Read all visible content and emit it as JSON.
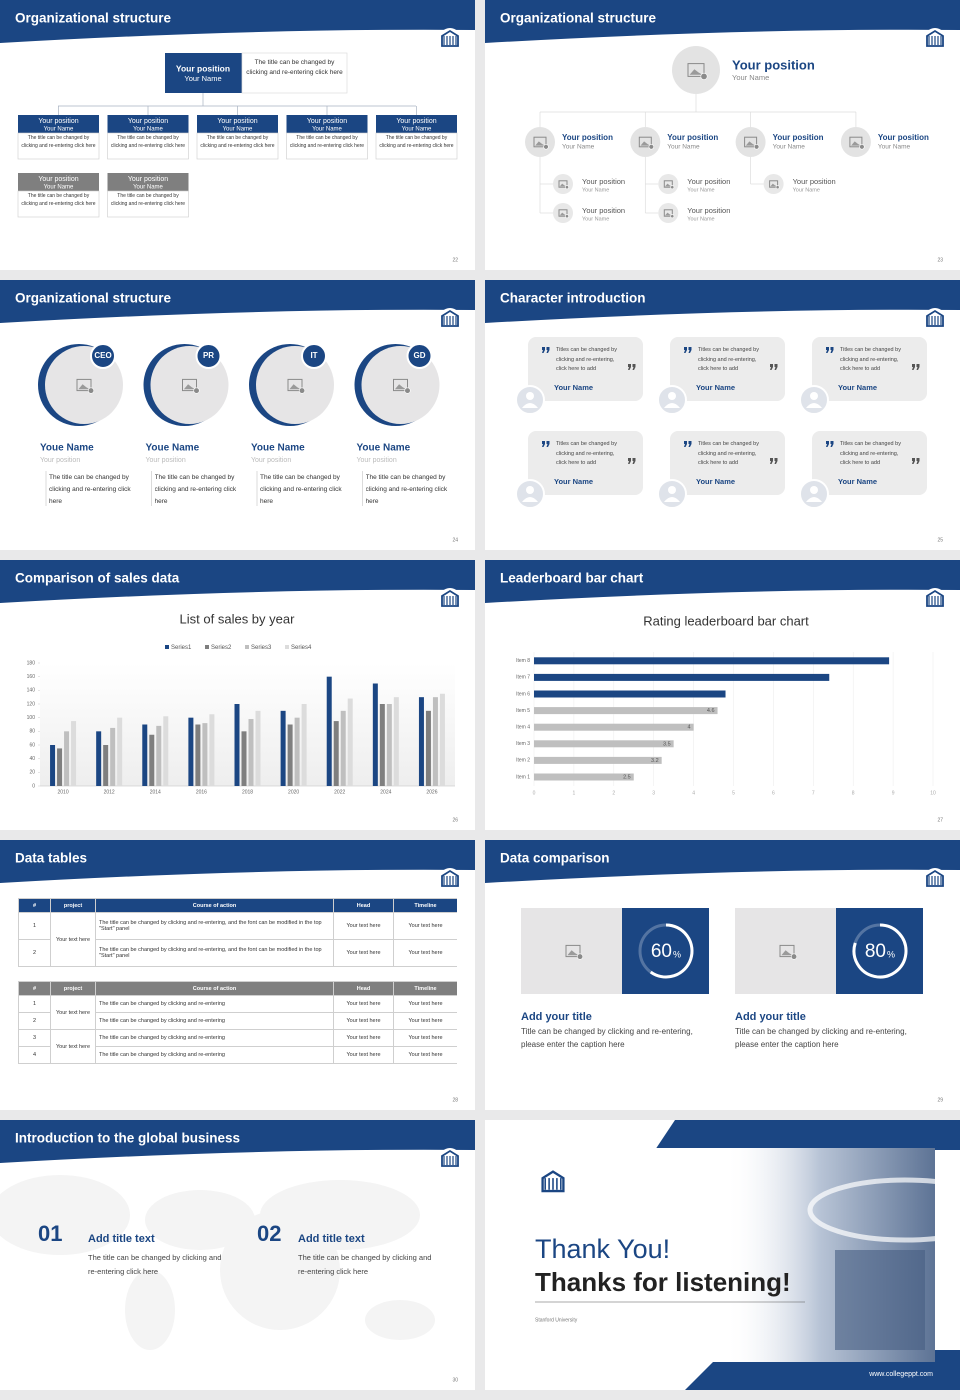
{
  "slides": [
    {
      "title": "Organizational structure",
      "page": "22",
      "top": {
        "position": "Your position",
        "name": "Your Name",
        "note": "The title can be changed by clicking and re-entering click here"
      },
      "members": [
        {
          "position": "Your position",
          "name": "Your Name",
          "text": "The title can be changed by clicking and re-entering click here"
        },
        {
          "position": "Your position",
          "name": "Your Name",
          "text": "The title can be changed by clicking and re-entering click here"
        },
        {
          "position": "Your position",
          "name": "Your Name",
          "text": "The title can be changed by clicking and re-entering click here"
        },
        {
          "position": "Your position",
          "name": "Your Name",
          "text": "The title can be changed by clicking and re-entering click here"
        },
        {
          "position": "Your position",
          "name": "Your Name",
          "text": "The title can be changed by clicking and re-entering click here"
        }
      ],
      "assistants": [
        {
          "position": "Your position",
          "name": "Your Name",
          "text": "The title can be changed by clicking and re-entering click here"
        },
        {
          "position": "Your position",
          "name": "Your Name",
          "text": "The title can be changed by clicking and re-entering click here"
        }
      ]
    },
    {
      "title": "Organizational structure",
      "page": "23",
      "top": {
        "position": "Your position",
        "name": "Your Name"
      },
      "items": [
        {
          "position": "Your position",
          "name": "Your Name",
          "children": [
            {
              "position": "Your position",
              "name": "Your Name"
            },
            {
              "position": "Your position",
              "name": "Your Name"
            }
          ]
        },
        {
          "position": "Your position",
          "name": "Your Name",
          "children": [
            {
              "position": "Your position",
              "name": "Your Name"
            },
            {
              "position": "Your position",
              "name": "Your Name"
            }
          ]
        },
        {
          "position": "Your position",
          "name": "Your Name",
          "children": [
            {
              "position": "Your position",
              "name": "Your Name"
            }
          ]
        },
        {
          "position": "Your position",
          "name": "Your Name",
          "children": []
        }
      ]
    },
    {
      "title": "Organizational structure",
      "page": "24",
      "people": [
        {
          "badge": "CEO",
          "name": "Youe Name",
          "position": "Your position",
          "text": "The title can be changed by clicking and re-entering click here"
        },
        {
          "badge": "PR",
          "name": "Youe Name",
          "position": "Your position",
          "text": "The title can be changed by clicking and re-entering click here"
        },
        {
          "badge": "IT",
          "name": "Youe Name",
          "position": "Your position",
          "text": "The title can be changed by clicking and re-entering click here"
        },
        {
          "badge": "GD",
          "name": "Youe Name",
          "position": "Your position",
          "text": "The title can be changed by clicking and re-entering click here"
        }
      ]
    },
    {
      "title": "Character introduction",
      "page": "25",
      "cards": [
        {
          "quote": "Titles can be changed by clicking and re-entering, click here to add",
          "name": "Your Name"
        },
        {
          "quote": "Titles can be changed by clicking and re-entering, click here to add",
          "name": "Your Name"
        },
        {
          "quote": "Titles can be changed by clicking and re-entering, click here to add",
          "name": "Your Name"
        },
        {
          "quote": "Titles can be changed by clicking and re-entering, click here to add",
          "name": "Your Name"
        },
        {
          "quote": "Titles can be changed by clicking and re-entering, click here to add",
          "name": "Your Name"
        },
        {
          "quote": "Titles can be changed by clicking and re-entering, click here to add",
          "name": "Your Name"
        }
      ]
    },
    {
      "title": "Comparison of sales data",
      "page": "26",
      "chart": {
        "type": "bar",
        "title": "List of sales by year",
        "categories": [
          "2010",
          "2012",
          "2014",
          "2016",
          "2018",
          "2020",
          "2022",
          "2024",
          "2026"
        ],
        "series": [
          {
            "name": "Series1",
            "color": "#1b4683",
            "values": [
              60,
              80,
              90,
              100,
              120,
              110,
              160,
              150,
              130
            ]
          },
          {
            "name": "Series2",
            "color": "#7f7f7f",
            "values": [
              55,
              60,
              75,
              90,
              80,
              90,
              95,
              120,
              110
            ]
          },
          {
            "name": "Series3",
            "color": "#bfbfbf",
            "values": [
              80,
              85,
              88,
              92,
              98,
              100,
              110,
              120,
              130
            ]
          },
          {
            "name": "Series4",
            "color": "#dcdcdc",
            "values": [
              95,
              100,
              102,
              105,
              110,
              120,
              128,
              130,
              135
            ]
          }
        ],
        "ylim": [
          0,
          180
        ],
        "yticks": [
          0,
          20,
          40,
          60,
          80,
          100,
          120,
          140,
          160,
          180
        ],
        "legend": "top"
      }
    },
    {
      "title": "Leaderboard bar chart",
      "page": "27",
      "chart": {
        "type": "bar",
        "horizontal": true,
        "title": "Rating leaderboard bar chart",
        "categories": [
          "Item 1",
          "Item 2",
          "Item 3",
          "Item 4",
          "Item 5",
          "Item 6",
          "Item 7",
          "Item 8"
        ],
        "values": [
          2.5,
          3.2,
          3.5,
          4,
          4.6,
          4.8,
          7.4,
          8.9
        ],
        "value_labels": [
          "2.5",
          "3.2",
          "3.5",
          "4",
          "4.6",
          null,
          null,
          null
        ],
        "colors": [
          "#bfbfbf",
          "#bfbfbf",
          "#bfbfbf",
          "#bfbfbf",
          "#bfbfbf",
          "#1b4683",
          "#1b4683",
          "#1b4683"
        ],
        "xlim": [
          0,
          10
        ],
        "xticks": [
          0,
          1,
          2,
          3,
          4,
          5,
          6,
          7,
          8,
          9,
          10
        ],
        "grid": true
      }
    },
    {
      "title": "Data tables",
      "page": "28",
      "tables": [
        {
          "header_color": "#1b4683",
          "headers": [
            "#",
            "project",
            "Course of action",
            "Head",
            "Timeline"
          ],
          "groups": [
            {
              "project": "Your text here",
              "rows": [
                [
                  "1",
                  "The title can be changed by clicking and re-entering, and the font can be modified in the top \"Start\" panel",
                  "Your text here",
                  "Your text here"
                ],
                [
                  "2",
                  "The title can be changed by clicking and re-entering, and the font can be modified in the top \"Start\" panel",
                  "Your text here",
                  "Your text here"
                ]
              ]
            }
          ]
        },
        {
          "header_color": "#7f7f7f",
          "headers": [
            "#",
            "project",
            "Course of action",
            "Head",
            "Timeline"
          ],
          "groups": [
            {
              "project": "Your text here",
              "rows": [
                [
                  "1",
                  "The title can be changed by clicking and re-entering",
                  "Your text here",
                  "Your text here"
                ],
                [
                  "2",
                  "The title can be changed by clicking and re-entering",
                  "Your text here",
                  "Your text here"
                ]
              ]
            },
            {
              "project": "Your text here",
              "rows": [
                [
                  "3",
                  "The title can be changed by clicking and re-entering",
                  "Your text here",
                  "Your text here"
                ],
                [
                  "4",
                  "The title can be changed by clicking and re-entering",
                  "Your text here",
                  "Your text here"
                ]
              ]
            }
          ]
        }
      ]
    },
    {
      "title": "Data comparison",
      "page": "29",
      "cards": [
        {
          "value": 60,
          "unit": "%",
          "title": "Add your title",
          "text": "Title can be changed by clicking and re-entering, please enter the caption here"
        },
        {
          "value": 80,
          "unit": "%",
          "title": "Add your title",
          "text": "Title can be changed by clicking and re-entering, please enter the caption here"
        }
      ]
    },
    {
      "title": "Introduction to the global business",
      "page": "30",
      "items": [
        {
          "number": "01",
          "title": "Add title text",
          "text": "The title can be changed by clicking and re-entering click here"
        },
        {
          "number": "02",
          "title": "Add title text",
          "text": "The title can be changed by clicking and re-entering click here"
        }
      ]
    },
    {
      "title": "Thank You!",
      "subtitle": "Thanks for listening!",
      "organization": "Stanford University",
      "website": "www.collegeppt.com"
    }
  ]
}
